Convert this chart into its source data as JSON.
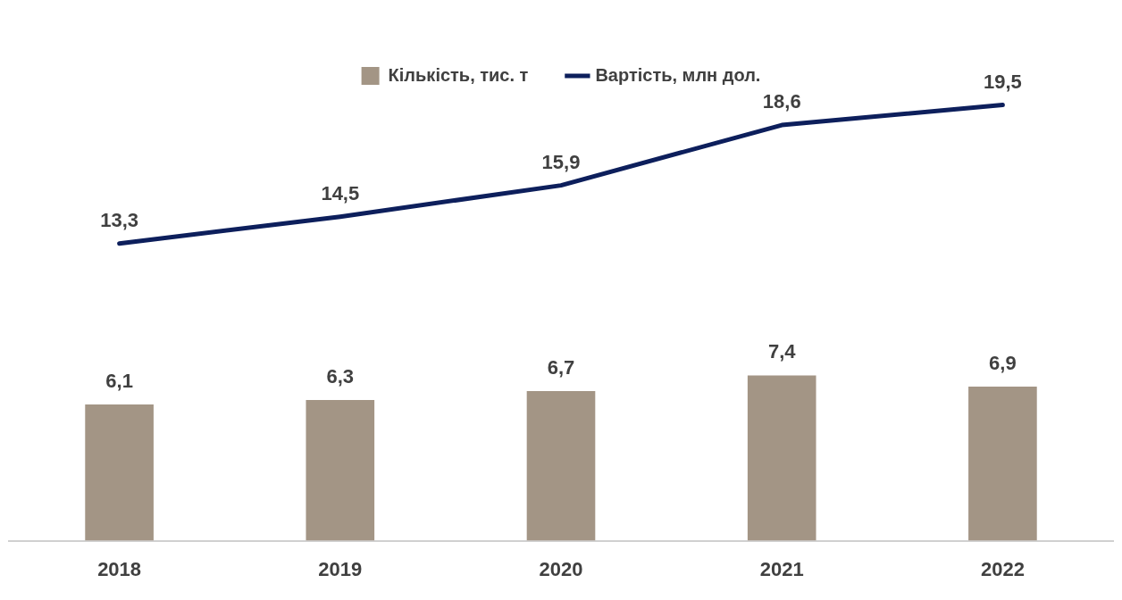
{
  "chart_data": {
    "type": "bar",
    "categories": [
      "2018",
      "2019",
      "2020",
      "2021",
      "2022"
    ],
    "series": [
      {
        "name": "Кількість, тис. т",
        "color": "#a39585",
        "values": [
          6.1,
          6.3,
          6.7,
          7.4,
          6.9
        ],
        "value_labels": [
          "6,1",
          "6,3",
          "6,7",
          "7,4",
          "6,9"
        ]
      },
      {
        "name": "Вартість, млн дол.",
        "type": "line",
        "color": "#0d1f5c",
        "values": [
          13.3,
          14.5,
          15.9,
          18.6,
          19.5
        ],
        "value_labels": [
          "13,3",
          "14,5",
          "15,9",
          "18,6",
          "19,5"
        ]
      }
    ],
    "legend": "top"
  }
}
